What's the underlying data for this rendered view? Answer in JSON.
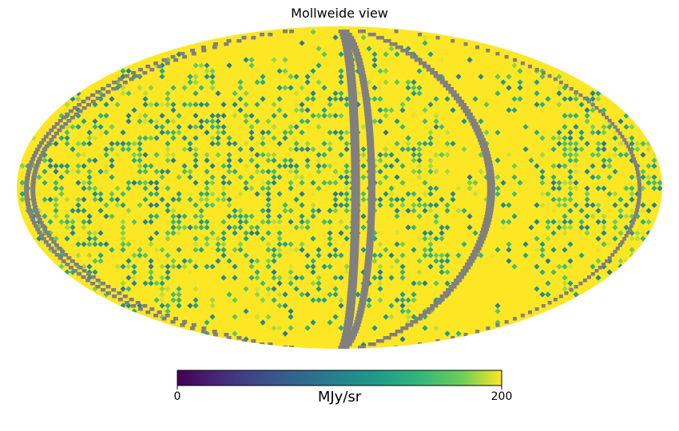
{
  "chart_data": {
    "type": "heatmap",
    "projection": "mollweide",
    "title": "Mollweide view",
    "colorbar": {
      "label": "MJy/sr",
      "min": 0,
      "max": 200,
      "ticks": [
        "0",
        "200"
      ],
      "colormap": "viridis"
    },
    "bad_value_color": "#808080",
    "background_value": 200
  }
}
